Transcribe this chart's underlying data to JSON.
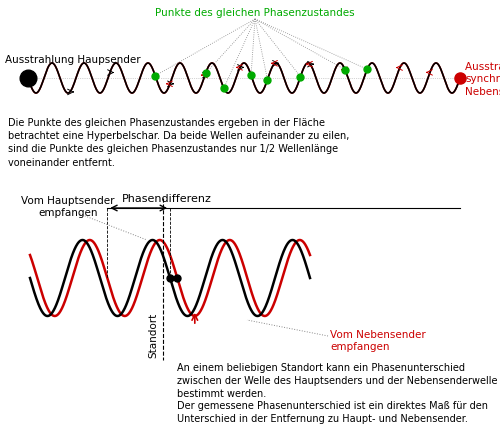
{
  "bg_color": "#ffffff",
  "wave1_color": "#000000",
  "wave2_color": "#cc0000",
  "dot_color": "#00aa00",
  "text_color": "#000000",
  "green_text_color": "#00aa00",
  "red_text_color": "#cc0000",
  "title_top_left": "Ausstrahlung Haupsender",
  "title_top_right": "Ausstrahlung des\nsynchronisierten\nNebensender",
  "green_label": "Punkte des gleichen Phasenzustandes",
  "body_text": "Die Punkte des gleichen Phasenzustandes ergeben in der Fläche\nbetrachtet eine Hyperbelschar. Da beide Wellen aufeinander zu eilen,\nsind die Punkte des gleichen Phasenzustandes nur 1/2 Wellenlänge\nvoneinander entfernt.",
  "label_hauptsender": "Vom Hauptsender\nempfangen",
  "label_phasendiff": "Phasendifferenz",
  "label_nebensender": "Vom Nebensender\nempfangen",
  "label_standort": "Standort",
  "bottom_text": "An einem beliebigen Standort kann ein Phasenunterschied\nzwischen der Welle des Hauptsenders und der Nebensenderwelle\nbestimmt werden.\nDer gemessene Phasenunterschied ist ein direktes Maß für den\nUnterschied in der Entfernung zu Haupt- und Nebensender.",
  "fs": 7.5
}
